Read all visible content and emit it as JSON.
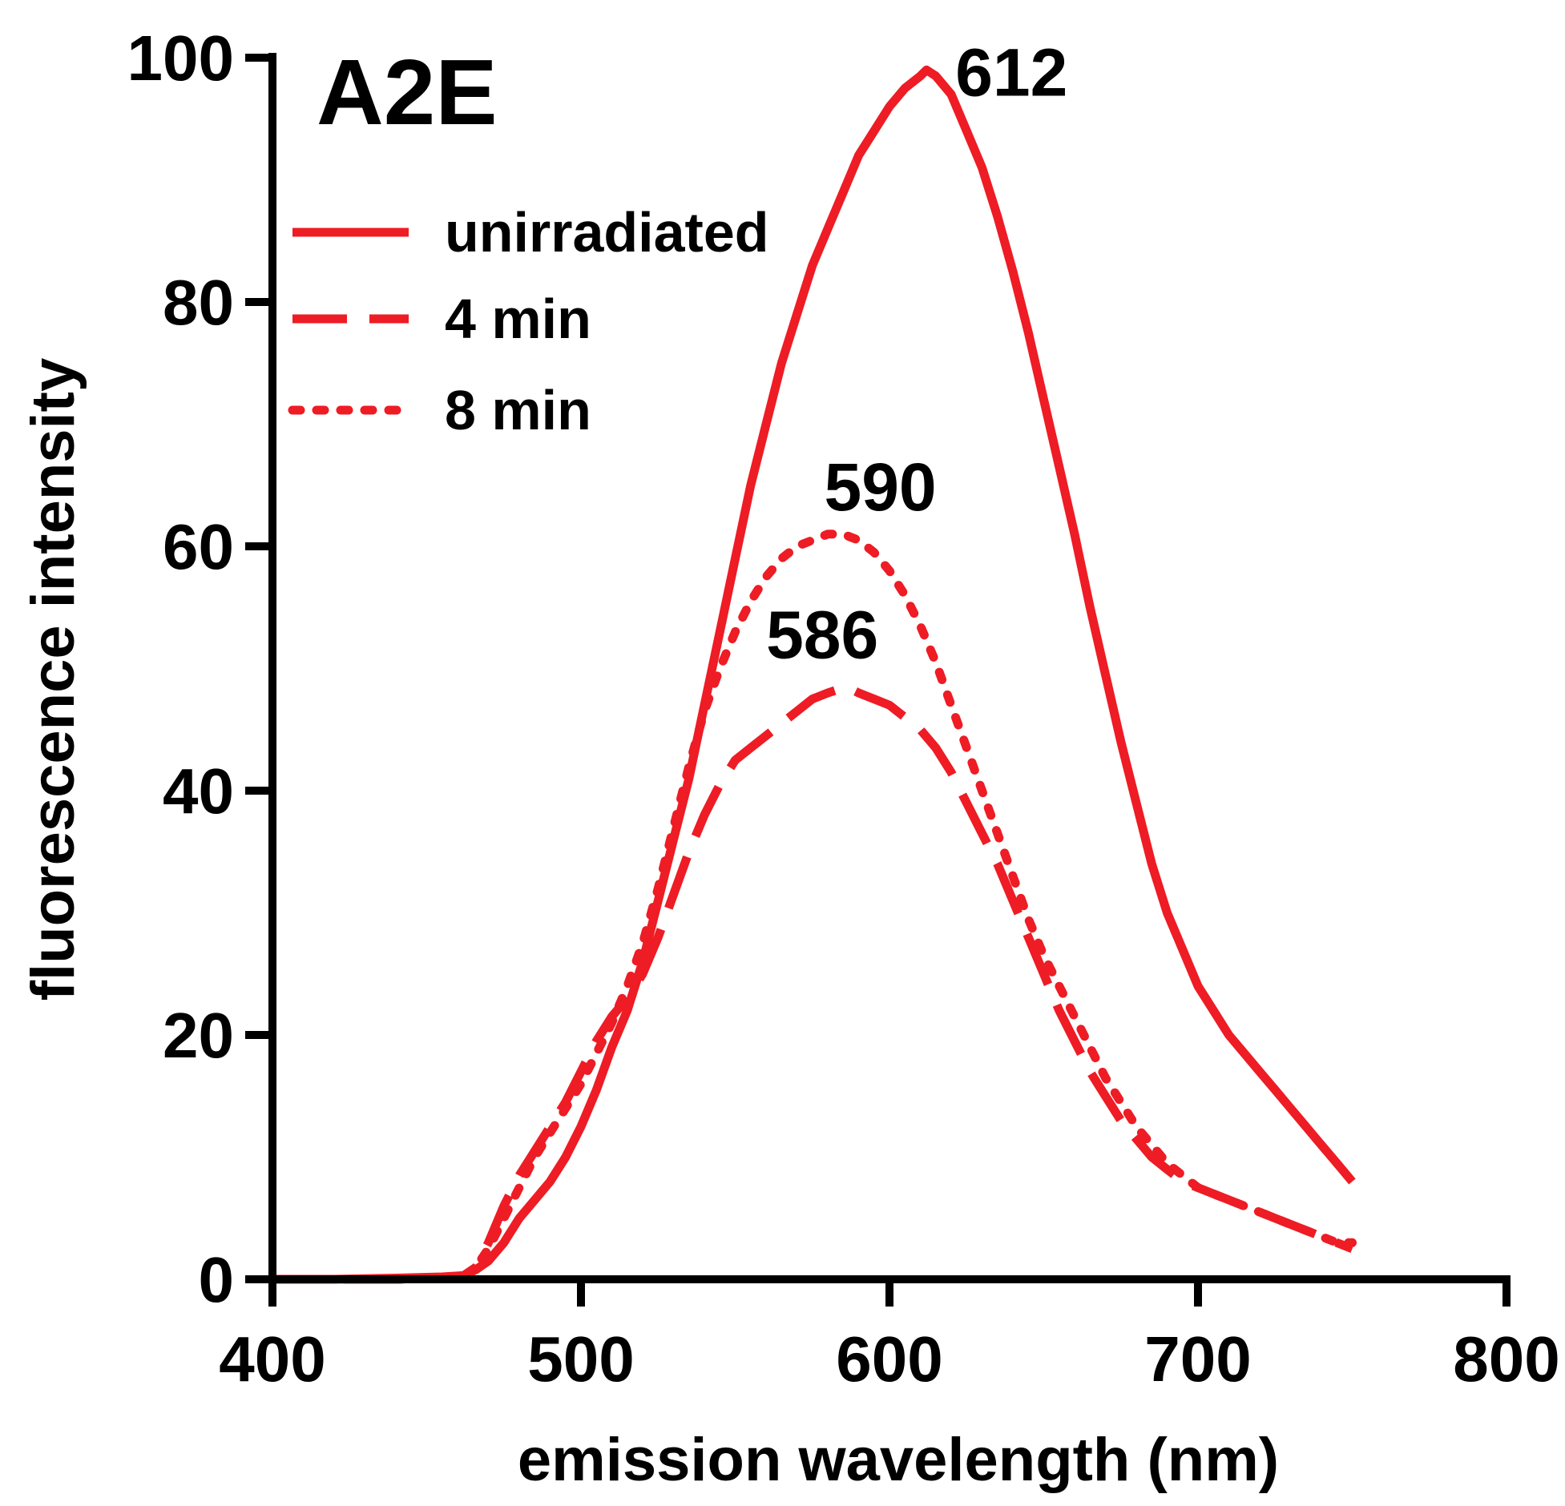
{
  "chart_data": {
    "type": "line",
    "title": "A2E",
    "xlabel": "emission wavelength (nm)",
    "ylabel": "fluorescence intensity",
    "xlim": [
      400,
      800
    ],
    "ylim": [
      0,
      100
    ],
    "x_ticks": [
      400,
      500,
      600,
      700,
      800
    ],
    "y_ticks": [
      0,
      20,
      40,
      60,
      80,
      100
    ],
    "grid": false,
    "legend_position": "top-left",
    "line_color": "#ee1c24",
    "series": [
      {
        "name": "unirradiated",
        "style": "solid",
        "x": [
          400,
          420,
          440,
          455,
          462,
          466,
          470,
          475,
          480,
          485,
          490,
          495,
          500,
          505,
          510,
          515,
          520,
          525,
          530,
          535,
          540,
          545,
          550,
          555,
          560,
          565,
          570,
          575,
          580,
          585,
          590,
          595,
          600,
          605,
          610,
          612,
          615,
          620,
          625,
          630,
          635,
          640,
          645,
          650,
          655,
          660,
          665,
          670,
          675,
          680,
          685,
          690,
          695,
          700,
          705,
          710,
          715,
          720,
          725,
          730,
          735,
          740,
          745,
          750
        ],
        "y": [
          0,
          0,
          0.1,
          0.2,
          0.3,
          0.8,
          1.5,
          3,
          5,
          6.5,
          8,
          10,
          12.5,
          15.5,
          19,
          22,
          26,
          31,
          36,
          41,
          47,
          53,
          59,
          65,
          70,
          75,
          79,
          83,
          86,
          89,
          92,
          94,
          96,
          97.5,
          98.5,
          99,
          98.5,
          97,
          94,
          91,
          87,
          82.5,
          77.5,
          72,
          66.5,
          61,
          55,
          49.5,
          44,
          39,
          34,
          30,
          27,
          24,
          22,
          20,
          18.5,
          17,
          15.5,
          14,
          12.5,
          11,
          9.5,
          8
        ]
      },
      {
        "name": "4 min",
        "style": "dashed",
        "x": [
          400,
          420,
          440,
          455,
          462,
          466,
          470,
          475,
          480,
          485,
          490,
          495,
          500,
          505,
          510,
          515,
          520,
          525,
          530,
          535,
          540,
          545,
          550,
          555,
          560,
          565,
          570,
          575,
          580,
          586,
          590,
          595,
          600,
          605,
          610,
          615,
          620,
          625,
          630,
          635,
          640,
          645,
          650,
          655,
          660,
          665,
          670,
          675,
          680,
          685,
          690,
          695,
          700,
          705,
          710,
          715,
          720,
          725,
          730,
          735,
          740,
          745,
          750
        ],
        "y": [
          0,
          0,
          0,
          0.1,
          0.3,
          1,
          3,
          6,
          8.5,
          10.5,
          12.5,
          14.5,
          17,
          19.5,
          21.5,
          23,
          25,
          28,
          31.5,
          35,
          38,
          40.5,
          42.5,
          43.5,
          44.5,
          45.5,
          46.5,
          47.5,
          48,
          48.5,
          48,
          47.5,
          47,
          46,
          45,
          43.5,
          41.5,
          39,
          36.5,
          34,
          31,
          28,
          25,
          22,
          19.5,
          17,
          15,
          13,
          11.5,
          10,
          9,
          8,
          7.5,
          7,
          6.5,
          6,
          5.5,
          5,
          4.5,
          4,
          3.5,
          3,
          2.5
        ]
      },
      {
        "name": "8 min",
        "style": "dotted",
        "x": [
          400,
          420,
          440,
          455,
          462,
          466,
          470,
          475,
          480,
          485,
          490,
          495,
          500,
          505,
          510,
          515,
          520,
          525,
          530,
          535,
          540,
          545,
          550,
          555,
          560,
          565,
          570,
          575,
          580,
          585,
          590,
          595,
          600,
          605,
          610,
          615,
          620,
          625,
          630,
          635,
          640,
          645,
          650,
          655,
          660,
          665,
          670,
          675,
          680,
          685,
          690,
          695,
          700,
          705,
          710,
          715,
          720,
          725,
          730,
          735,
          740,
          745,
          750
        ],
        "y": [
          0,
          0,
          0,
          0.1,
          0.3,
          1,
          2.5,
          5,
          7.5,
          10,
          12,
          14,
          16,
          18.5,
          21,
          24,
          27.5,
          32,
          37,
          42,
          46.5,
          50,
          53,
          55.5,
          57.5,
          59,
          60,
          60.5,
          61,
          61,
          60.5,
          59.5,
          58,
          56,
          53.5,
          50.5,
          47,
          43.5,
          40,
          36.5,
          33,
          29.5,
          26.5,
          24,
          21.5,
          19,
          16.5,
          14.5,
          12.5,
          11,
          9.5,
          8.5,
          7.5,
          7,
          6.5,
          6,
          5.5,
          5,
          4.5,
          4,
          3.5,
          3,
          3
        ]
      }
    ],
    "annotations": [
      {
        "text": "612",
        "x": 612,
        "y": 99
      },
      {
        "text": "590",
        "x": 590,
        "y": 61
      },
      {
        "text": "586",
        "x": 586,
        "y": 48.5
      }
    ]
  }
}
